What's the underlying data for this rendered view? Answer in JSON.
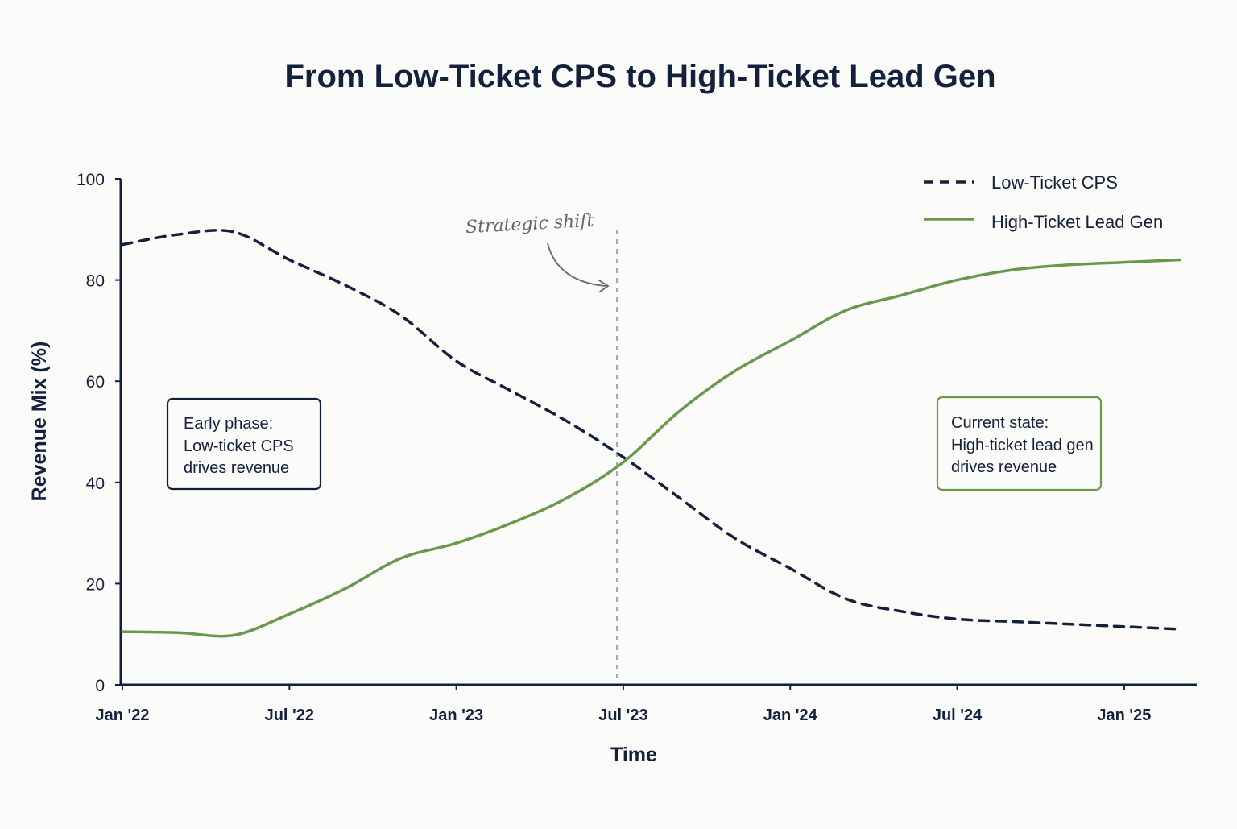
{
  "chart_data": {
    "type": "line",
    "title": "From Low-Ticket CPS to High-Ticket Lead Gen",
    "xlabel": "Time",
    "ylabel": "Revenue Mix (%)",
    "ylim": [
      0,
      100
    ],
    "yticks": [
      0,
      20,
      40,
      60,
      80,
      100
    ],
    "xlim": [
      "2022-01",
      "2025-03"
    ],
    "xticks": [
      {
        "date": "2022-01",
        "label": "Jan '22"
      },
      {
        "date": "2022-07",
        "label": "Jul '22"
      },
      {
        "date": "2023-01",
        "label": "Jan '23"
      },
      {
        "date": "2023-07",
        "label": "Jul '23"
      },
      {
        "date": "2024-01",
        "label": "Jan '24"
      },
      {
        "date": "2024-07",
        "label": "Jul '24"
      },
      {
        "date": "2025-01",
        "label": "Jan '25"
      }
    ],
    "grid": false,
    "legend_position": "top-right",
    "series": [
      {
        "name": "Low-Ticket CPS",
        "color": "#14213d",
        "style": "dashed",
        "points": [
          {
            "x": "2022-01",
            "y": 87
          },
          {
            "x": "2022-03",
            "y": 89
          },
          {
            "x": "2022-05",
            "y": 89.5
          },
          {
            "x": "2022-07",
            "y": 84
          },
          {
            "x": "2022-09",
            "y": 79
          },
          {
            "x": "2022-11",
            "y": 73
          },
          {
            "x": "2023-01",
            "y": 64
          },
          {
            "x": "2023-03",
            "y": 58
          },
          {
            "x": "2023-05",
            "y": 52
          },
          {
            "x": "2023-07",
            "y": 45
          },
          {
            "x": "2023-09",
            "y": 37
          },
          {
            "x": "2023-11",
            "y": 29
          },
          {
            "x": "2024-01",
            "y": 23
          },
          {
            "x": "2024-03",
            "y": 17
          },
          {
            "x": "2024-05",
            "y": 14.5
          },
          {
            "x": "2024-07",
            "y": 13
          },
          {
            "x": "2024-09",
            "y": 12.5
          },
          {
            "x": "2024-11",
            "y": 12
          },
          {
            "x": "2025-01",
            "y": 11.5
          },
          {
            "x": "2025-03",
            "y": 11
          }
        ]
      },
      {
        "name": "High-Ticket Lead Gen",
        "color": "#6a994e",
        "style": "solid",
        "points": [
          {
            "x": "2022-01",
            "y": 10.5
          },
          {
            "x": "2022-03",
            "y": 10.3
          },
          {
            "x": "2022-05",
            "y": 9.8
          },
          {
            "x": "2022-07",
            "y": 14
          },
          {
            "x": "2022-09",
            "y": 19
          },
          {
            "x": "2022-11",
            "y": 25
          },
          {
            "x": "2023-01",
            "y": 28
          },
          {
            "x": "2023-03",
            "y": 32
          },
          {
            "x": "2023-05",
            "y": 37
          },
          {
            "x": "2023-07",
            "y": 44
          },
          {
            "x": "2023-09",
            "y": 54
          },
          {
            "x": "2023-11",
            "y": 62
          },
          {
            "x": "2024-01",
            "y": 68
          },
          {
            "x": "2024-03",
            "y": 74
          },
          {
            "x": "2024-05",
            "y": 77
          },
          {
            "x": "2024-07",
            "y": 80
          },
          {
            "x": "2024-09",
            "y": 82
          },
          {
            "x": "2024-11",
            "y": 83
          },
          {
            "x": "2025-01",
            "y": 83.5
          },
          {
            "x": "2025-03",
            "y": 84
          }
        ]
      }
    ],
    "annotations": [
      {
        "type": "vline",
        "x": "2023-07",
        "label": "Strategic shift",
        "color": "#9a9a9a"
      },
      {
        "type": "box",
        "lines": [
          "Early phase:",
          "Low-ticket CPS",
          "drives revenue"
        ],
        "color": "#14213d"
      },
      {
        "type": "box",
        "lines": [
          "Current state:",
          "High-ticket lead gen",
          "drives revenue"
        ],
        "color": "#6a994e"
      }
    ]
  }
}
